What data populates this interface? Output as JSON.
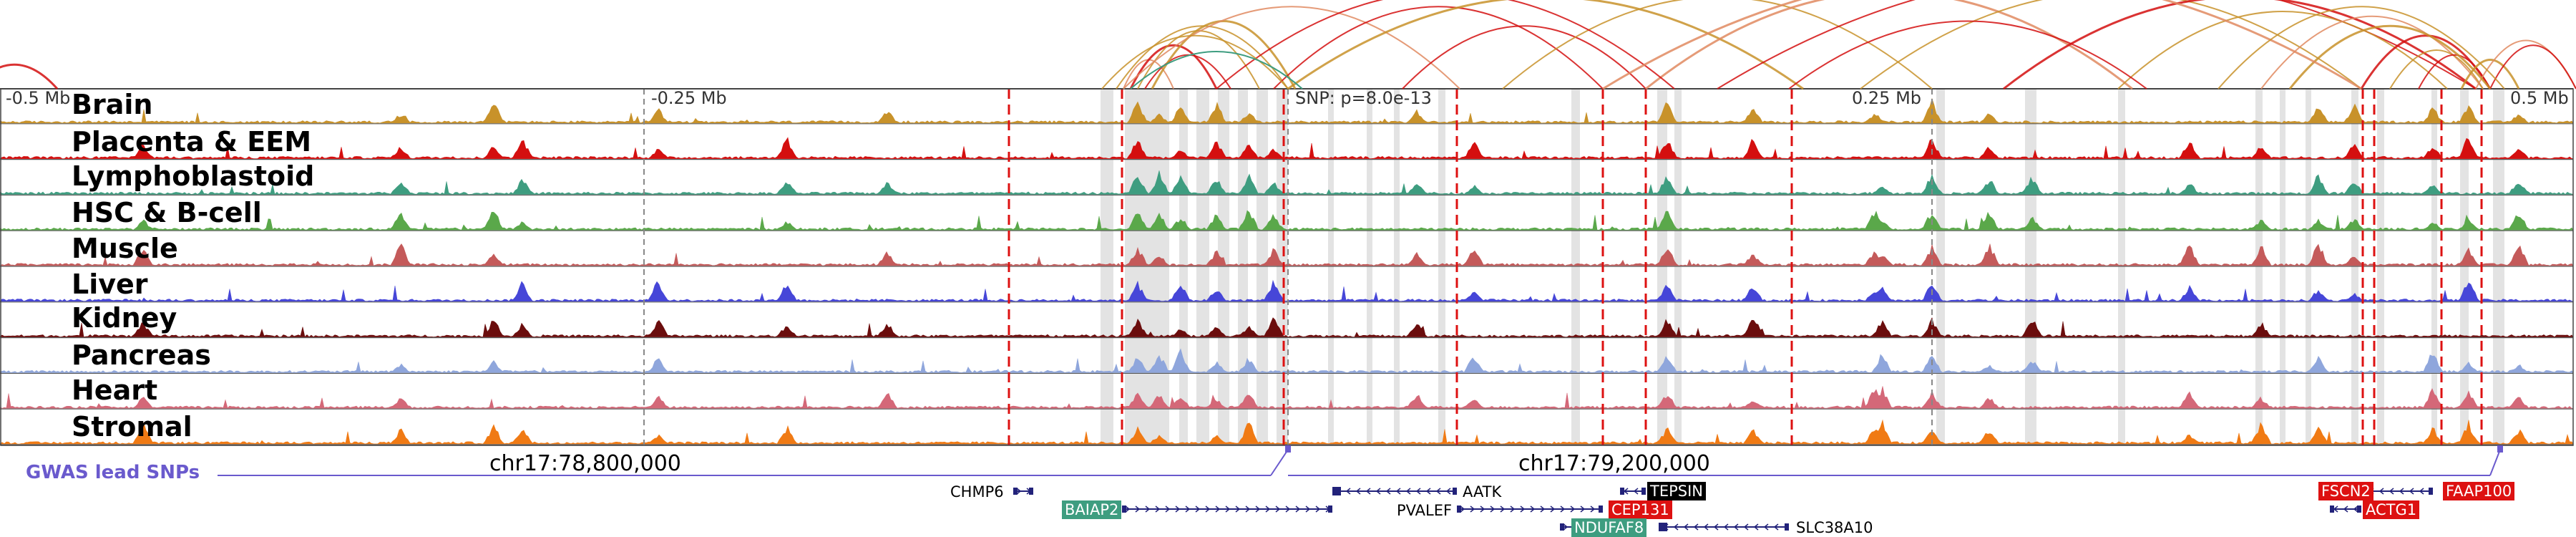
{
  "tracks": [
    {
      "name": "Brain",
      "color": "#c8922a",
      "dark": false
    },
    {
      "name": "Placenta & EEM",
      "color": "#d40f0f",
      "dark": false
    },
    {
      "name": "Lymphoblastoid",
      "color": "#3e9d80",
      "dark": false
    },
    {
      "name": "HSC & B-cell",
      "color": "#5aa84a",
      "dark": false
    },
    {
      "name": "Muscle",
      "color": "#c45a5a",
      "dark": false
    },
    {
      "name": "Liver",
      "color": "#4646d8",
      "dark": false
    },
    {
      "name": "Kidney",
      "color": "#6b0d0d",
      "dark": false
    },
    {
      "name": "Pancreas",
      "color": "#8fa6dc",
      "dark": false
    },
    {
      "name": "Heart",
      "color": "#d46878",
      "dark": false
    },
    {
      "name": "Stromal",
      "color": "#f07a14",
      "dark": false
    }
  ],
  "scale": {
    "left": "-0.5 Mb",
    "mid_left": "-0.25 Mb",
    "snp": "SNP: p=8.0e-13",
    "mid_right": "0.25 Mb",
    "right": "0.5 Mb"
  },
  "coordinates": {
    "left": "chr17:78,800,000",
    "right": "chr17:79,200,000"
  },
  "gwas": {
    "label": "GWAS lead SNPs",
    "color": "#6a5acd"
  },
  "genes": [
    {
      "name": "CHMP6",
      "style": "plain"
    },
    {
      "name": "BAIAP2",
      "style": "teal"
    },
    {
      "name": "AATK",
      "style": "plain"
    },
    {
      "name": "PVALEF",
      "style": "plain"
    },
    {
      "name": "TEPSIN",
      "style": "black"
    },
    {
      "name": "CEP131",
      "style": "red"
    },
    {
      "name": "NDUFAF8",
      "style": "teal"
    },
    {
      "name": "SLC38A10",
      "style": "plain"
    },
    {
      "name": "FSCN2",
      "style": "red"
    },
    {
      "name": "FAAP100",
      "style": "red"
    },
    {
      "name": "ACTG1",
      "style": "red"
    }
  ],
  "colors": {
    "red_dash": "#dd1111",
    "highlight": "#d9d9d9",
    "gene_blue": "#22227a",
    "teal_box": "#3e9d80",
    "red_box": "#dd1111",
    "black_box": "#000000"
  }
}
